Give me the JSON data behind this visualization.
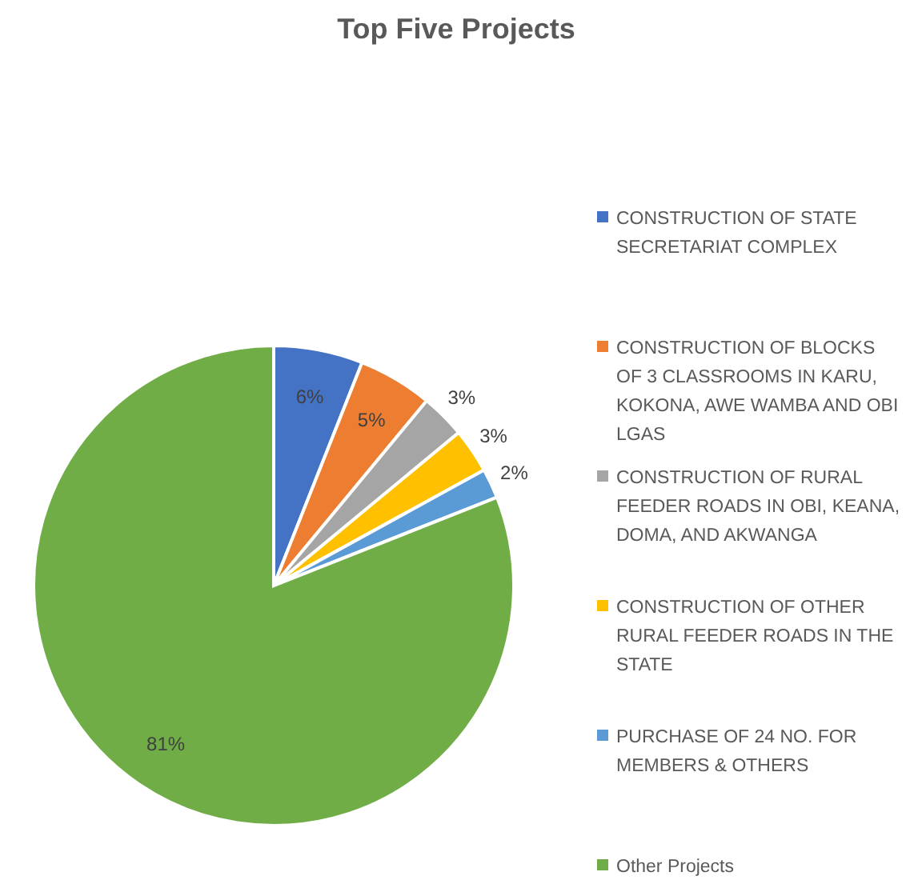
{
  "chart_data": {
    "type": "pie",
    "title": "Top Five Projects",
    "categories": [
      "CONSTRUCTION OF STATE SECRETARIAT COMPLEX",
      "CONSTRUCTION OF BLOCKS OF 3 CLASSROOMS IN KARU, KOKONA, AWE WAMBA AND OBI LGAS",
      "CONSTRUCTION OF RURAL FEEDER ROADS IN OBI, KEANA, DOMA, AND AKWANGA",
      "CONSTRUCTION OF OTHER RURAL FEEDER ROADS IN THE STATE",
      "PURCHASE OF 24 NO. FOR MEMBERS & OTHERS",
      "Other Projects"
    ],
    "values": [
      6,
      5,
      3,
      3,
      2,
      81
    ],
    "value_labels": [
      "6%",
      "5%",
      "3%",
      "3%",
      "2%",
      "81%"
    ],
    "colors": [
      "#4472c4",
      "#ed7d31",
      "#a5a5a5",
      "#ffc000",
      "#5b9bd5",
      "#70ad47"
    ],
    "legend": "right"
  }
}
